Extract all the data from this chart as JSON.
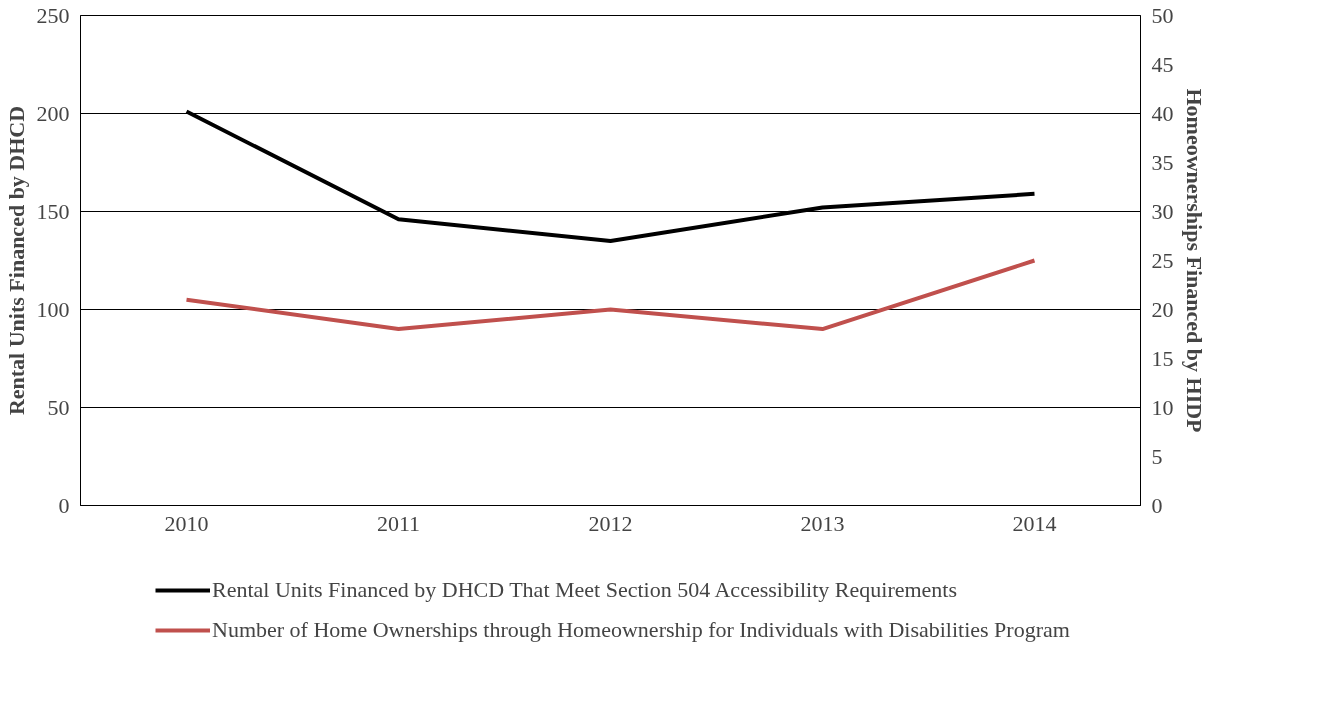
{
  "chart_data": {
    "type": "line",
    "categories": [
      "2010",
      "2011",
      "2012",
      "2013",
      "2014"
    ],
    "ylabel": "Rental Units Financed by DHCD",
    "y2label": "Homeownerships Financed by HIDP",
    "ylim": [
      0,
      250
    ],
    "yticks": [
      0,
      50,
      100,
      150,
      200,
      250
    ],
    "y2lim": [
      0,
      50
    ],
    "y2ticks": [
      0,
      5,
      10,
      15,
      20,
      25,
      30,
      35,
      40,
      45,
      50
    ],
    "grid": "y",
    "legend": "bottom",
    "line_style": "solid",
    "marker": "none",
    "series": [
      {
        "name": "Rental Units Financed by DHCD That Meet Section 504 Accessibility Requirements",
        "color": "#000000",
        "values": [
          201,
          146,
          135,
          152,
          159
        ]
      },
      {
        "name": "Number of Home Ownerships through Homeownership for Individuals with Disabilities Program",
        "color": "#c0504d",
        "values": [
          21,
          18,
          20,
          18,
          25
        ],
        "axis": "y2"
      }
    ]
  }
}
